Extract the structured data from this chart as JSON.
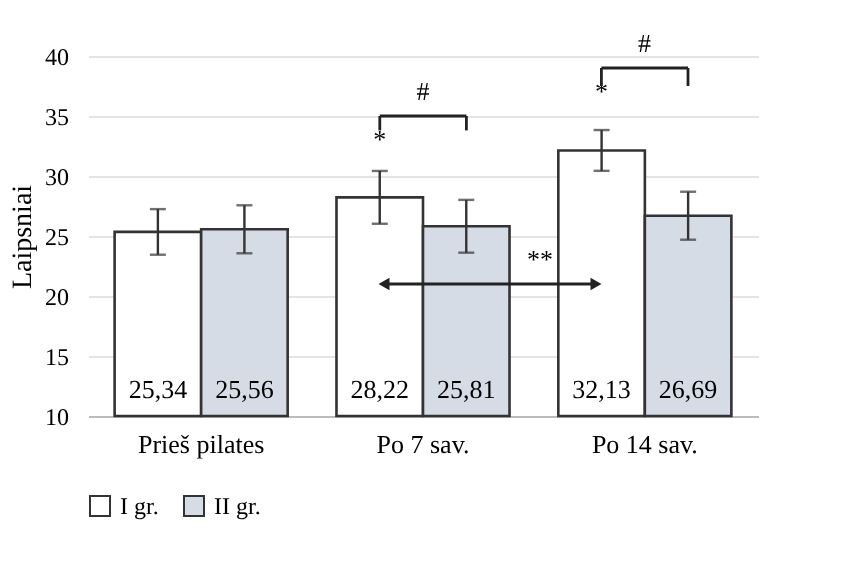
{
  "chart_data": {
    "type": "bar",
    "ylabel": "Laipsniai",
    "categories": [
      "Prieš pilates",
      "Po 7 sav.",
      "Po 14 sav."
    ],
    "series": [
      {
        "name": "I gr.",
        "color": "#ffffff",
        "values": [
          25.34,
          28.22,
          32.13
        ],
        "errors": [
          1.9,
          2.2,
          1.7
        ],
        "value_labels": [
          "25,34",
          "28,22",
          "32,13"
        ]
      },
      {
        "name": "II gr.",
        "color": "#d6dce5",
        "values": [
          25.56,
          25.81,
          26.69
        ],
        "errors": [
          2.0,
          2.2,
          2.0
        ],
        "value_labels": [
          "25,56",
          "25,81",
          "26,69"
        ]
      }
    ],
    "ylim": [
      10,
      40
    ],
    "yticks": [
      10,
      15,
      20,
      25,
      30,
      35,
      40
    ],
    "grid": "y",
    "legend": "bottom",
    "annotations": [
      "#",
      "*",
      "#",
      "*",
      "**"
    ]
  }
}
